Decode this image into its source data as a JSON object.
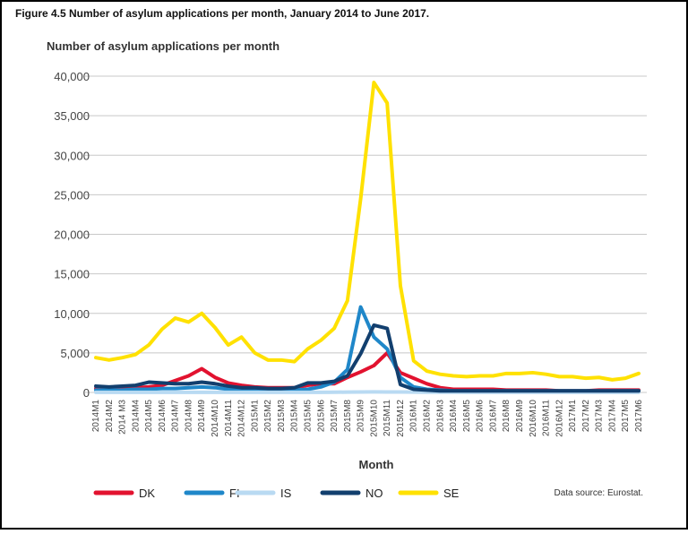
{
  "chart_data": {
    "type": "line",
    "title": "Figure 4.5 Number of asylum applications per month, January 2014 to June 2017.",
    "ylabel": "Number of asylum applications per month",
    "xlabel": "Month",
    "source": "Data source: Eurostat.",
    "categories": [
      "2014M1",
      "2014M2",
      "2014 M3",
      "2014M4",
      "2014M5",
      "2014M6",
      "2014M7",
      "2014M8",
      "2014M9",
      "2014M10",
      "2014M11",
      "2014M12",
      "2015M1",
      "2015M2",
      "2015M3",
      "2015M4",
      "2015M5",
      "2015M6",
      "2015M7",
      "2015M8",
      "2015M9",
      "2015M10",
      "2015M11",
      "2015M12",
      "2016M1",
      "2016M2",
      "2016M3",
      "2016M4",
      "2016M5",
      "2016M6",
      "2016M7",
      "2016M8",
      "2016M9",
      "2016M10",
      "2016M11",
      "2016M12",
      "2017M1",
      "2017M2",
      "2017M3",
      "2017M4",
      "2017M5",
      "2017M6"
    ],
    "series": [
      {
        "name": "DK",
        "color": "#e2122f",
        "values": [
          500,
          500,
          500,
          600,
          700,
          900,
          1500,
          2100,
          3000,
          1900,
          1200,
          900,
          700,
          600,
          600,
          600,
          900,
          1100,
          1100,
          1900,
          2600,
          3400,
          5000,
          2500,
          1800,
          1100,
          600,
          400,
          400,
          400,
          400,
          300,
          300,
          300,
          300,
          200,
          200,
          200,
          300,
          300,
          300,
          300
        ]
      },
      {
        "name": "FI",
        "color": "#1f87c9",
        "values": [
          300,
          300,
          300,
          400,
          400,
          500,
          500,
          600,
          700,
          600,
          400,
          300,
          200,
          200,
          200,
          300,
          400,
          700,
          1300,
          2900,
          10800,
          7000,
          5500,
          1900,
          700,
          400,
          300,
          200,
          200,
          200,
          200,
          200,
          200,
          200,
          200,
          200,
          200,
          200,
          200,
          200,
          200,
          200
        ]
      },
      {
        "name": "IS",
        "color": "#b9daf2",
        "values": [
          20,
          20,
          20,
          20,
          20,
          20,
          20,
          20,
          20,
          20,
          20,
          20,
          20,
          20,
          20,
          20,
          20,
          20,
          30,
          40,
          60,
          70,
          60,
          50,
          40,
          30,
          30,
          30,
          20,
          20,
          20,
          20,
          20,
          20,
          20,
          20,
          20,
          20,
          20,
          20,
          20,
          20
        ]
      },
      {
        "name": "NO",
        "color": "#123f6e",
        "values": [
          800,
          700,
          800,
          900,
          1300,
          1200,
          1100,
          1100,
          1300,
          1100,
          800,
          600,
          600,
          500,
          500,
          600,
          1200,
          1200,
          1400,
          2100,
          4900,
          8500,
          8100,
          1000,
          400,
          300,
          200,
          200,
          200,
          200,
          200,
          200,
          200,
          200,
          200,
          200,
          200,
          200,
          200,
          200,
          200,
          200
        ]
      },
      {
        "name": "SE",
        "color": "#ffe100",
        "values": [
          4400,
          4100,
          4400,
          4800,
          6000,
          8000,
          9400,
          8900,
          10000,
          8200,
          6000,
          7000,
          5000,
          4100,
          4100,
          3900,
          5500,
          6600,
          8100,
          11600,
          24500,
          39200,
          36600,
          13500,
          4000,
          2700,
          2300,
          2100,
          2000,
          2100,
          2100,
          2400,
          2400,
          2500,
          2300,
          2000,
          2000,
          1800,
          1900,
          1600,
          1800,
          2400
        ]
      }
    ],
    "ylim": [
      0,
      40000
    ],
    "yticks": [
      0,
      {
        "value": 5000,
        "label": "5,000"
      },
      {
        "value": 10000,
        "label": "10,000"
      },
      {
        "value": 15000,
        "label": "15,000"
      },
      {
        "value": 20000,
        "label": "20,000"
      },
      {
        "value": 25000,
        "label": "25,000"
      },
      {
        "value": 30000,
        "label": "30,000"
      },
      {
        "value": 35000,
        "label": "35,000"
      },
      {
        "value": 40000,
        "label": "40,000"
      }
    ],
    "grid": true
  }
}
